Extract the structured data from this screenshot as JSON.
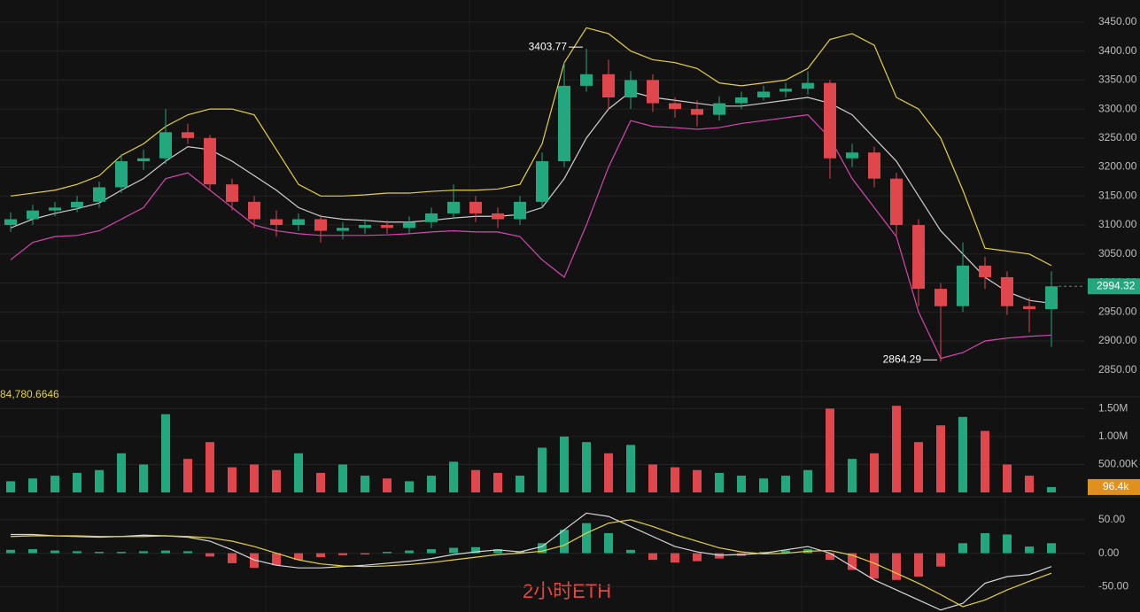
{
  "chart_data": [
    {
      "type": "candlestick",
      "up_color": "#22a77f",
      "down_color": "#e0474c",
      "open": [
        3100,
        3110,
        3125,
        3130,
        3140,
        3165,
        3210,
        3215,
        3260,
        3250,
        3170,
        3140,
        3110,
        3100,
        3110,
        3090,
        3095,
        3100,
        3095,
        3105,
        3120,
        3140,
        3120,
        3110,
        3140,
        3210,
        3340,
        3360,
        3320,
        3350,
        3310,
        3300,
        3290,
        3310,
        3320,
        3330,
        3335,
        3345,
        3215,
        3225,
        3180,
        3100,
        2990,
        2960,
        3030,
        3010,
        2960,
        2955
      ],
      "high": [
        3122,
        3135,
        3140,
        3150,
        3175,
        3222,
        3230,
        3300,
        3275,
        3255,
        3180,
        3150,
        3125,
        3120,
        3118,
        3105,
        3110,
        3108,
        3115,
        3130,
        3170,
        3150,
        3130,
        3150,
        3225,
        3380,
        3403.77,
        3385,
        3365,
        3360,
        3320,
        3315,
        3322,
        3330,
        3340,
        3345,
        3365,
        3350,
        3240,
        3235,
        3190,
        3110,
        3000,
        3070,
        3045,
        3020,
        2975,
        3020
      ],
      "low": [
        3088,
        3100,
        3115,
        3122,
        3130,
        3155,
        3195,
        3205,
        3240,
        3160,
        3125,
        3095,
        3080,
        3090,
        3070,
        3075,
        3085,
        3085,
        3085,
        3095,
        3110,
        3105,
        3095,
        3100,
        3130,
        3200,
        3330,
        3300,
        3300,
        3295,
        3285,
        3270,
        3280,
        3300,
        3315,
        3320,
        3325,
        3180,
        3200,
        3165,
        3080,
        2960,
        2864.29,
        2950,
        2990,
        2945,
        2915,
        2890
      ],
      "close": [
        3110,
        3125,
        3130,
        3140,
        3165,
        3210,
        3215,
        3260,
        3250,
        3170,
        3140,
        3110,
        3100,
        3110,
        3090,
        3095,
        3100,
        3095,
        3105,
        3120,
        3140,
        3120,
        3110,
        3140,
        3210,
        3340,
        3360,
        3320,
        3350,
        3310,
        3300,
        3290,
        3310,
        3320,
        3330,
        3335,
        3345,
        3215,
        3225,
        3180,
        3100,
        2990,
        2960,
        3030,
        3010,
        2960,
        2955,
        2994.32
      ],
      "bands": [
        {
          "color": "#e6d23c",
          "values": [
            3150,
            3155,
            3160,
            3170,
            3185,
            3220,
            3240,
            3270,
            3290,
            3300,
            3300,
            3290,
            3230,
            3170,
            3150,
            3150,
            3152,
            3155,
            3155,
            3158,
            3160,
            3160,
            3162,
            3170,
            3240,
            3380,
            3440,
            3430,
            3400,
            3385,
            3380,
            3370,
            3345,
            3340,
            3345,
            3350,
            3370,
            3420,
            3430,
            3410,
            3320,
            3300,
            3250,
            3160,
            3060,
            3055,
            3050,
            3030
          ]
        },
        {
          "color": "#cfcfcf",
          "values": [
            3095,
            3110,
            3120,
            3128,
            3138,
            3160,
            3180,
            3210,
            3235,
            3230,
            3210,
            3185,
            3160,
            3130,
            3115,
            3110,
            3108,
            3105,
            3105,
            3108,
            3112,
            3115,
            3115,
            3118,
            3130,
            3180,
            3250,
            3300,
            3330,
            3320,
            3315,
            3310,
            3305,
            3305,
            3310,
            3315,
            3320,
            3310,
            3290,
            3250,
            3210,
            3150,
            3090,
            3050,
            3010,
            2985,
            2970,
            2965
          ]
        },
        {
          "color": "#d846b0",
          "values": [
            3040,
            3070,
            3080,
            3082,
            3090,
            3110,
            3130,
            3180,
            3190,
            3160,
            3130,
            3100,
            3090,
            3085,
            3082,
            3082,
            3082,
            3083,
            3085,
            3088,
            3090,
            3088,
            3088,
            3080,
            3040,
            3010,
            3100,
            3200,
            3280,
            3270,
            3268,
            3265,
            3268,
            3275,
            3280,
            3285,
            3290,
            3250,
            3180,
            3130,
            3080,
            2950,
            2870,
            2880,
            2900,
            2905,
            2908,
            2910
          ]
        }
      ],
      "max_label": "3403.77",
      "min_label": "2864.29",
      "ylim": [
        2816,
        3488
      ],
      "yticks": [
        {
          "value": 3450,
          "label": "3450.00"
        },
        {
          "value": 3400,
          "label": "3400.00"
        },
        {
          "value": 3350,
          "label": "3350.00"
        },
        {
          "value": 3300,
          "label": "3300.00"
        },
        {
          "value": 3250,
          "label": "3250.00"
        },
        {
          "value": 3200,
          "label": "3200.00"
        },
        {
          "value": 3150,
          "label": "3150.00"
        },
        {
          "value": 3100,
          "label": "3100.00"
        },
        {
          "value": 3050,
          "label": "3050.00"
        },
        {
          "value": 3000,
          "label": "3000.00"
        },
        {
          "value": 2950,
          "label": "2950.00"
        },
        {
          "value": 2900,
          "label": "2900.00"
        },
        {
          "value": 2850,
          "label": "2850.00"
        }
      ],
      "grid": true
    },
    {
      "type": "bar",
      "legend_value": "84,780.6646",
      "values": [
        200000,
        250000,
        300000,
        350000,
        400000,
        700000,
        500000,
        1400000,
        600000,
        900000,
        450000,
        500000,
        400000,
        700000,
        350000,
        500000,
        300000,
        250000,
        200000,
        300000,
        550000,
        400000,
        350000,
        300000,
        800000,
        1000000,
        900000,
        700000,
        850000,
        500000,
        450000,
        400000,
        350000,
        300000,
        250000,
        300000,
        400000,
        1500000,
        600000,
        700000,
        1550000,
        900000,
        1200000,
        1350000,
        1100000,
        500000,
        300000,
        96400
      ],
      "badge_label": "96.4k",
      "badge_color": "#e0901c",
      "ylim": [
        0,
        1600000
      ],
      "yticks": [
        {
          "value": 1500000,
          "label": "1.50M"
        },
        {
          "value": 1000000,
          "label": "1.00M"
        },
        {
          "value": 500000,
          "label": "500.00K"
        }
      ],
      "grid": true
    },
    {
      "type": "macd",
      "title": "2小时ETH",
      "histogram": [
        5,
        6,
        4,
        3,
        2,
        2,
        3,
        4,
        3,
        -5,
        -15,
        -22,
        -18,
        -10,
        -6,
        -3,
        -2,
        2,
        4,
        6,
        8,
        9,
        6,
        3,
        15,
        35,
        45,
        30,
        5,
        -10,
        -14,
        -12,
        -8,
        -4,
        2,
        4,
        6,
        -10,
        -25,
        -38,
        -40,
        -35,
        -20,
        15,
        30,
        28,
        10,
        15
      ],
      "series": [
        {
          "color": "#d8d8d8",
          "values": [
            28,
            28,
            26,
            25,
            24,
            25,
            27,
            26,
            24,
            18,
            5,
            -10,
            -18,
            -22,
            -22,
            -20,
            -18,
            -15,
            -12,
            -8,
            -2,
            2,
            5,
            2,
            10,
            35,
            60,
            55,
            40,
            25,
            10,
            2,
            -3,
            -2,
            0,
            5,
            10,
            0,
            -20,
            -40,
            -55,
            -70,
            -85,
            -75,
            -45,
            -35,
            -32,
            -20
          ]
        },
        {
          "color": "#e6d23c",
          "values": [
            25,
            26,
            26,
            26,
            25,
            25,
            25,
            26,
            25,
            23,
            18,
            10,
            0,
            -10,
            -16,
            -19,
            -20,
            -19,
            -17,
            -14,
            -10,
            -6,
            -2,
            0,
            3,
            12,
            30,
            45,
            50,
            40,
            28,
            18,
            8,
            2,
            -1,
            0,
            3,
            4,
            -3,
            -15,
            -30,
            -45,
            -62,
            -80,
            -70,
            -55,
            -42,
            -30
          ]
        }
      ],
      "ylim": [
        -88,
        79
      ],
      "yticks": [
        {
          "value": 50,
          "label": "50.00"
        },
        {
          "value": 0,
          "label": "0.00"
        },
        {
          "value": -50,
          "label": "-50.00"
        }
      ],
      "grid": true
    }
  ]
}
